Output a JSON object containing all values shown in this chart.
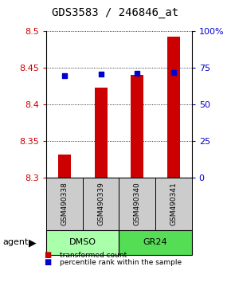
{
  "title": "GDS3583 / 246846_at",
  "samples": [
    "GSM490338",
    "GSM490339",
    "GSM490340",
    "GSM490341"
  ],
  "red_values": [
    8.332,
    8.423,
    8.44,
    8.492
  ],
  "blue_values": [
    0.695,
    0.707,
    0.713,
    0.718
  ],
  "ylim_left": [
    8.3,
    8.5
  ],
  "ylim_right": [
    0.0,
    1.0
  ],
  "yticks_left": [
    8.3,
    8.35,
    8.4,
    8.45,
    8.5
  ],
  "yticks_right": [
    0.0,
    0.25,
    0.5,
    0.75,
    1.0
  ],
  "ytick_labels_right": [
    "0",
    "25",
    "50",
    "75",
    "100%"
  ],
  "ytick_labels_left": [
    "8.3",
    "8.35",
    "8.4",
    "8.45",
    "8.5"
  ],
  "bar_bottom": 8.3,
  "bar_width": 0.35,
  "red_color": "#cc0000",
  "blue_color": "#0000cc",
  "dmso_color": "#aaffaa",
  "gr24_color": "#55dd55",
  "gray_color": "#cccccc",
  "legend_red": "transformed count",
  "legend_blue": "percentile rank within the sample",
  "agent_label": "agent",
  "title_fontsize": 10,
  "tick_fontsize": 8,
  "sample_fontsize": 6.5,
  "group_fontsize": 8,
  "legend_fontsize": 6.5
}
